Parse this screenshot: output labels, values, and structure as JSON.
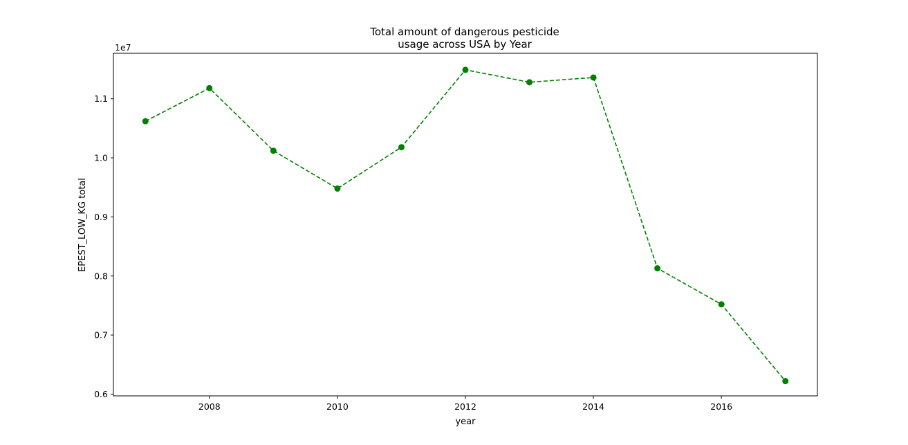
{
  "chart_data": {
    "type": "line",
    "title": [
      "Total amount of dangerous pesticide",
      "usage across USA by Year"
    ],
    "xlabel": "year",
    "ylabel": "EPEST_LOW_KG total",
    "y_offset_label": "1e7",
    "x": [
      2007,
      2008,
      2009,
      2010,
      2011,
      2012,
      2013,
      2014,
      2015,
      2016,
      2017
    ],
    "series": [
      {
        "values": [
          10620000,
          11180000,
          10120000,
          9480000,
          10180000,
          11490000,
          11280000,
          11360000,
          8130000,
          7520000,
          6220000
        ],
        "color": "#008000",
        "linestyle": "dashed",
        "marker": "circle"
      }
    ],
    "xlim": [
      2006.5,
      2017.5
    ],
    "ylim": [
      5970000,
      11770000
    ],
    "x_ticks": [
      2008,
      2010,
      2012,
      2014,
      2016
    ],
    "y_ticks": [
      6000000,
      7000000,
      8000000,
      9000000,
      10000000,
      11000000
    ],
    "y_tick_labels": [
      "0.6",
      "0.7",
      "0.8",
      "0.9",
      "1.0",
      "1.1"
    ],
    "grid": false,
    "legend": "none"
  }
}
